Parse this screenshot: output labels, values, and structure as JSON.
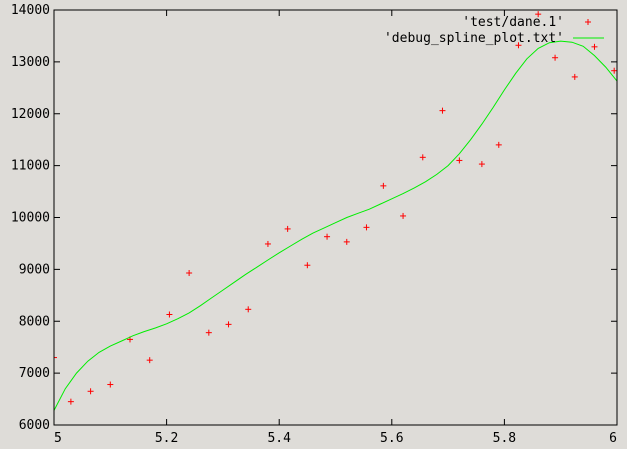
{
  "chart_data": {
    "type": "scatter",
    "title": "",
    "xlabel": "",
    "ylabel": "",
    "xlim": [
      5,
      6
    ],
    "ylim": [
      6000,
      14000
    ],
    "x_ticks": [
      "5",
      "5.2",
      "5.4",
      "5.6",
      "5.8",
      "6"
    ],
    "x_tick_values": [
      5,
      5.2,
      5.4,
      5.6,
      5.8,
      6
    ],
    "y_ticks": [
      "6000",
      "7000",
      "8000",
      "9000",
      "10000",
      "11000",
      "12000",
      "13000",
      "14000"
    ],
    "y_tick_values": [
      6000,
      7000,
      8000,
      9000,
      10000,
      11000,
      12000,
      13000,
      14000
    ],
    "grid": false,
    "legend_position": "top-right",
    "series": [
      {
        "name": "'test/dane.1'",
        "style": "points",
        "marker": "+",
        "color": "#ff0000",
        "x": [
          5.0,
          5.03,
          5.065,
          5.1,
          5.135,
          5.17,
          5.205,
          5.24,
          5.275,
          5.31,
          5.345,
          5.38,
          5.415,
          5.45,
          5.485,
          5.52,
          5.555,
          5.585,
          5.62,
          5.655,
          5.69,
          5.72,
          5.76,
          5.79,
          5.825,
          5.86,
          5.89,
          5.925,
          5.96,
          5.995
        ],
        "y": [
          7300,
          6450,
          6650,
          6780,
          7650,
          7250,
          8130,
          8930,
          7780,
          7940,
          8230,
          9490,
          9780,
          9080,
          9630,
          9530,
          9810,
          10610,
          10030,
          11160,
          12060,
          11100,
          11030,
          11400,
          13320,
          13920,
          13080,
          12710,
          13290,
          12830
        ]
      },
      {
        "name": "'debug_spline_plot.txt'",
        "style": "line",
        "color": "#00ee00",
        "x": [
          5.0,
          5.02,
          5.04,
          5.06,
          5.08,
          5.1,
          5.12,
          5.14,
          5.16,
          5.18,
          5.2,
          5.22,
          5.24,
          5.26,
          5.28,
          5.3,
          5.32,
          5.34,
          5.36,
          5.38,
          5.4,
          5.42,
          5.44,
          5.46,
          5.48,
          5.5,
          5.52,
          5.54,
          5.56,
          5.58,
          5.6,
          5.62,
          5.64,
          5.66,
          5.68,
          5.7,
          5.72,
          5.74,
          5.76,
          5.78,
          5.8,
          5.82,
          5.84,
          5.86,
          5.88,
          5.9,
          5.92,
          5.94,
          5.96,
          5.98,
          6.0
        ],
        "y": [
          6280,
          6700,
          7000,
          7230,
          7400,
          7520,
          7620,
          7720,
          7800,
          7870,
          7950,
          8050,
          8160,
          8300,
          8450,
          8600,
          8750,
          8900,
          9040,
          9180,
          9320,
          9450,
          9580,
          9700,
          9800,
          9900,
          10000,
          10080,
          10160,
          10260,
          10360,
          10460,
          10570,
          10690,
          10830,
          11000,
          11230,
          11500,
          11800,
          12120,
          12460,
          12780,
          13060,
          13260,
          13370,
          13400,
          13380,
          13300,
          13120,
          12900,
          12630
        ]
      }
    ]
  }
}
